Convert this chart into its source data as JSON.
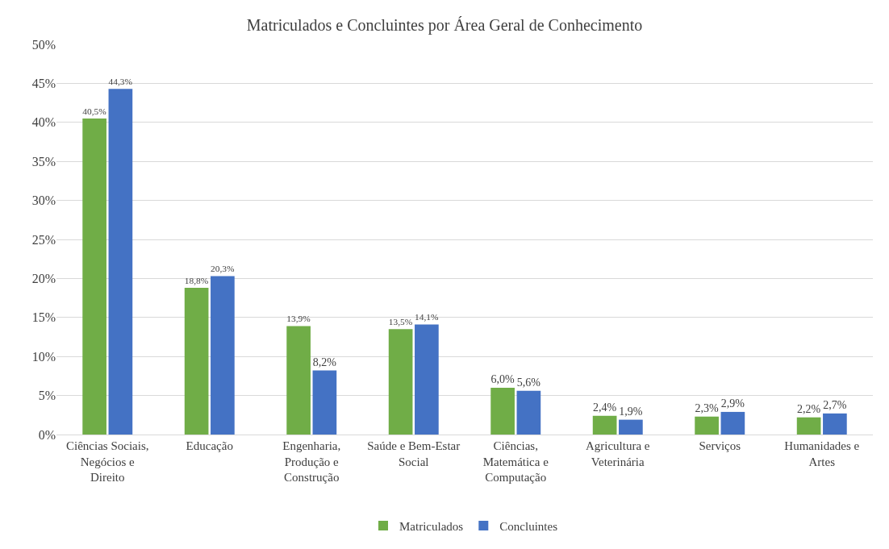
{
  "chart_data": {
    "type": "bar",
    "title": "Matriculados e Concluintes por Área Geral de Conhecimento",
    "categories": [
      "Ciências Sociais, Negócios e Direito",
      "Educação",
      "Engenharia, Produção e Construção",
      "Saúde e Bem-Estar Social",
      "Ciências, Matemática e Computação",
      "Agricultura e Veterinária",
      "Serviços",
      "Humanidades e Artes"
    ],
    "series": [
      {
        "name": "Matriculados",
        "color": "#70ad47",
        "values": [
          40.5,
          18.8,
          13.9,
          13.5,
          6.0,
          2.4,
          2.3,
          2.2
        ],
        "value_labels": [
          "40,5%",
          "18,8%",
          "13,9%",
          "13,5%",
          "6,0%",
          "2,4%",
          "2,3%",
          "2,2%"
        ]
      },
      {
        "name": "Concluintes",
        "color": "#4472c4",
        "values": [
          44.3,
          20.3,
          8.2,
          14.1,
          5.6,
          1.9,
          2.9,
          2.7
        ],
        "value_labels": [
          "44,3%",
          "20,3%",
          "8,2%",
          "14,1%",
          "5,6%",
          "1,9%",
          "2,9%",
          "2,7%"
        ]
      }
    ],
    "ylim": [
      0,
      50
    ],
    "yticks": [
      {
        "value": 0,
        "label": "0%"
      },
      {
        "value": 5,
        "label": "5%"
      },
      {
        "value": 10,
        "label": "10%"
      },
      {
        "value": 15,
        "label": "15%"
      },
      {
        "value": 20,
        "label": "20%"
      },
      {
        "value": 25,
        "label": "25%"
      },
      {
        "value": 30,
        "label": "30%"
      },
      {
        "value": 35,
        "label": "35%"
      },
      {
        "value": 40,
        "label": "40%"
      },
      {
        "value": 45,
        "label": "45%"
      },
      {
        "value": 50,
        "label": "50%"
      }
    ],
    "grid": "y",
    "legend": "bottom"
  }
}
